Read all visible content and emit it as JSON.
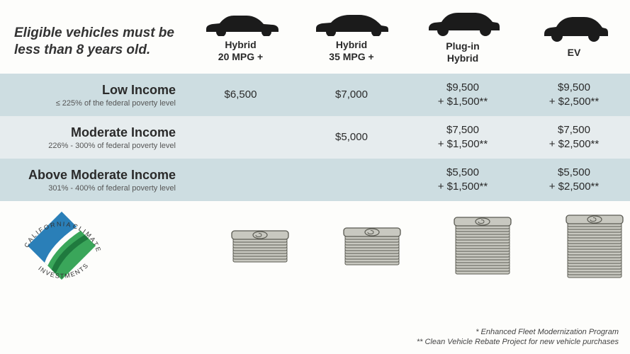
{
  "header": {
    "eligibility_line1": "Eligible vehicles must be",
    "eligibility_line2": "less than 8 years old.",
    "columns": [
      {
        "label_line1": "Hybrid",
        "label_line2": "20 MPG +"
      },
      {
        "label_line1": "Hybrid",
        "label_line2": "35 MPG +"
      },
      {
        "label_line1": "Plug-in",
        "label_line2": "Hybrid"
      },
      {
        "label_line1": "EV",
        "label_line2": ""
      }
    ]
  },
  "rows": [
    {
      "title": "Low Income",
      "sub": "≤ 225% of the federal poverty level",
      "cells": [
        "$6,500",
        "$7,000",
        "$9,500\n+ $1,500**",
        "$9,500\n+ $2,500**"
      ]
    },
    {
      "title": "Moderate Income",
      "sub": "226% - 300% of federal poverty level",
      "cells": [
        "",
        "$5,000",
        "$7,500\n+ $1,500**",
        "$7,500\n+ $2,500**"
      ]
    },
    {
      "title": "Above Moderate Income",
      "sub": "301% - 400% of federal poverty level",
      "cells": [
        "",
        "",
        "$5,500\n+ $1,500**",
        "$5,500\n+ $2,500**"
      ]
    }
  ],
  "stacks": {
    "heights": [
      36,
      44,
      70,
      80
    ]
  },
  "footnotes": {
    "line1": "* Enhanced Fleet Modernization Program",
    "line2": "** Clean Vehicle Rebate Project for new vehicle purchases"
  },
  "logo": {
    "top_text": "CALIFORNIA",
    "right_text": "CLIMATE",
    "bottom_text": "INVESTMENTS"
  },
  "colors": {
    "silhouette": "#1b1b1b",
    "band_a": "#cddde1",
    "band_b": "#e6ecee",
    "stack_fill": "#c8c8c0",
    "stack_stroke": "#5a5a52",
    "logo_blue": "#2a7fb8",
    "logo_green": "#3aa65a",
    "logo_darkgreen": "#1f7a3e"
  }
}
